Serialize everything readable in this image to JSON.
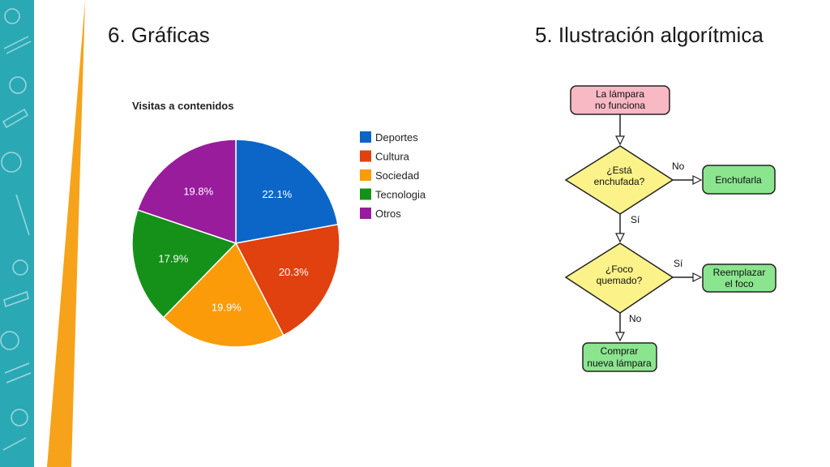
{
  "slide": {
    "left_title": "6. Gráficas",
    "right_title": "5. Ilustración algorítmica"
  },
  "colors": {
    "teal_band": "#2aa9b5",
    "orange_accent": "#f6a31b",
    "flow_start": "#f8b8c4",
    "flow_decision": "#fbf38a",
    "flow_action": "#8be58f"
  },
  "chart_data": {
    "type": "pie",
    "title": "Visitas a contenidos",
    "legend_position": "right",
    "slices": [
      {
        "label": "Deportes",
        "value": 22.1,
        "display": "22.1%",
        "color": "#0b66c8"
      },
      {
        "label": "Cultura",
        "value": 20.3,
        "display": "20.3%",
        "color": "#e1400f"
      },
      {
        "label": "Sociedad",
        "value": 19.9,
        "display": "19.9%",
        "color": "#fb9b09"
      },
      {
        "label": "Tecnologia",
        "value": 17.9,
        "display": "17.9%",
        "color": "#159119"
      },
      {
        "label": "Otros",
        "value": 19.8,
        "display": "19.8%",
        "color": "#981c9c"
      }
    ]
  },
  "flowchart": {
    "start_line1": "La lámpara",
    "start_line2": "no funciona",
    "decision1_line1": "¿Está",
    "decision1_line2": "enchufada?",
    "decision1_no": "No",
    "decision1_yes": "Sí",
    "action1": "Enchufarla",
    "decision2_line1": "¿Foco",
    "decision2_line2": "quemado?",
    "decision2_yes": "Sí",
    "decision2_no": "No",
    "action2_line1": "Reemplazar",
    "action2_line2": "el foco",
    "end_line1": "Comprar",
    "end_line2": "nueva lámpara"
  }
}
